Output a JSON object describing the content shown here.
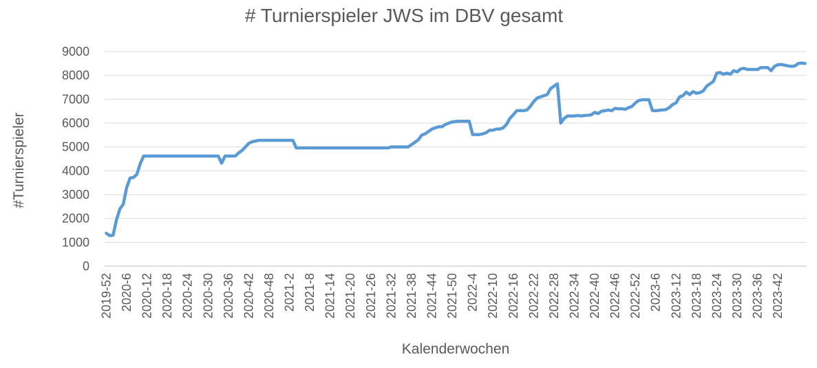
{
  "chart_data": {
    "type": "line",
    "title": "# Turnierspieler JWS im DBV gesamt",
    "xlabel": "Kalenderwochen",
    "ylabel": "#Turnierspieler",
    "ylim": [
      0,
      9000
    ],
    "yticks": [
      0,
      1000,
      2000,
      3000,
      4000,
      5000,
      6000,
      7000,
      8000,
      9000
    ],
    "grid": "horizontal",
    "color": "#5b9bd5",
    "x_tick_labels": [
      "2019-52",
      "2020-6",
      "2020-12",
      "2020-18",
      "2020-24",
      "2020-30",
      "2020-36",
      "2020-42",
      "2020-48",
      "2021-2",
      "2021-8",
      "2021-14",
      "2021-20",
      "2021-26",
      "2021-32",
      "2021-38",
      "2021-44",
      "2021-50",
      "2022-4",
      "2022-10",
      "2022-16",
      "2022-22",
      "2022-28",
      "2022-34",
      "2022-40",
      "2022-46",
      "2022-52",
      "2023-6",
      "2023-12",
      "2023-18",
      "2023-24",
      "2023-30",
      "2023-36",
      "2023-42"
    ],
    "series": [
      {
        "values": [
          1380,
          1280,
          1300,
          1950,
          2400,
          2600,
          3300,
          3700,
          3720,
          3850,
          4300,
          4620,
          4620,
          4620,
          4620,
          4620,
          4620,
          4620,
          4620,
          4620,
          4620,
          4620,
          4620,
          4620,
          4620,
          4620,
          4620,
          4620,
          4620,
          4620,
          4620,
          4620,
          4620,
          4620,
          4320,
          4620,
          4620,
          4620,
          4620,
          4750,
          4850,
          5000,
          5150,
          5220,
          5250,
          5280,
          5280,
          5280,
          5280,
          5280,
          5280,
          5280,
          5280,
          5280,
          5280,
          5280,
          4960,
          4960,
          4960,
          4960,
          4960,
          4960,
          4960,
          4960,
          4960,
          4960,
          4960,
          4960,
          4960,
          4960,
          4960,
          4960,
          4960,
          4960,
          4960,
          4960,
          4960,
          4960,
          4960,
          4960,
          4960,
          4960,
          4960,
          4960,
          5000,
          5000,
          5000,
          5000,
          5000,
          5000,
          5100,
          5200,
          5300,
          5500,
          5550,
          5650,
          5750,
          5800,
          5850,
          5850,
          5950,
          6000,
          6050,
          6070,
          6080,
          6080,
          6080,
          6080,
          5520,
          5520,
          5520,
          5550,
          5600,
          5700,
          5700,
          5750,
          5750,
          5800,
          5950,
          6200,
          6350,
          6520,
          6530,
          6520,
          6550,
          6700,
          6900,
          7050,
          7100,
          7150,
          7200,
          7450,
          7550,
          7650,
          6000,
          6200,
          6300,
          6300,
          6300,
          6320,
          6300,
          6320,
          6330,
          6350,
          6450,
          6400,
          6500,
          6520,
          6550,
          6520,
          6620,
          6600,
          6600,
          6580,
          6650,
          6700,
          6850,
          6950,
          6980,
          6980,
          6980,
          6530,
          6520,
          6540,
          6550,
          6570,
          6650,
          6780,
          6850,
          7100,
          7150,
          7300,
          7200,
          7320,
          7250,
          7280,
          7350,
          7550,
          7650,
          7750,
          8100,
          8120,
          8050,
          8100,
          8050,
          8200,
          8150,
          8270,
          8300,
          8250,
          8250,
          8250,
          8250,
          8330,
          8330,
          8330,
          8200,
          8380,
          8450,
          8460,
          8430,
          8400,
          8380,
          8400,
          8500,
          8520,
          8500
        ]
      }
    ]
  }
}
